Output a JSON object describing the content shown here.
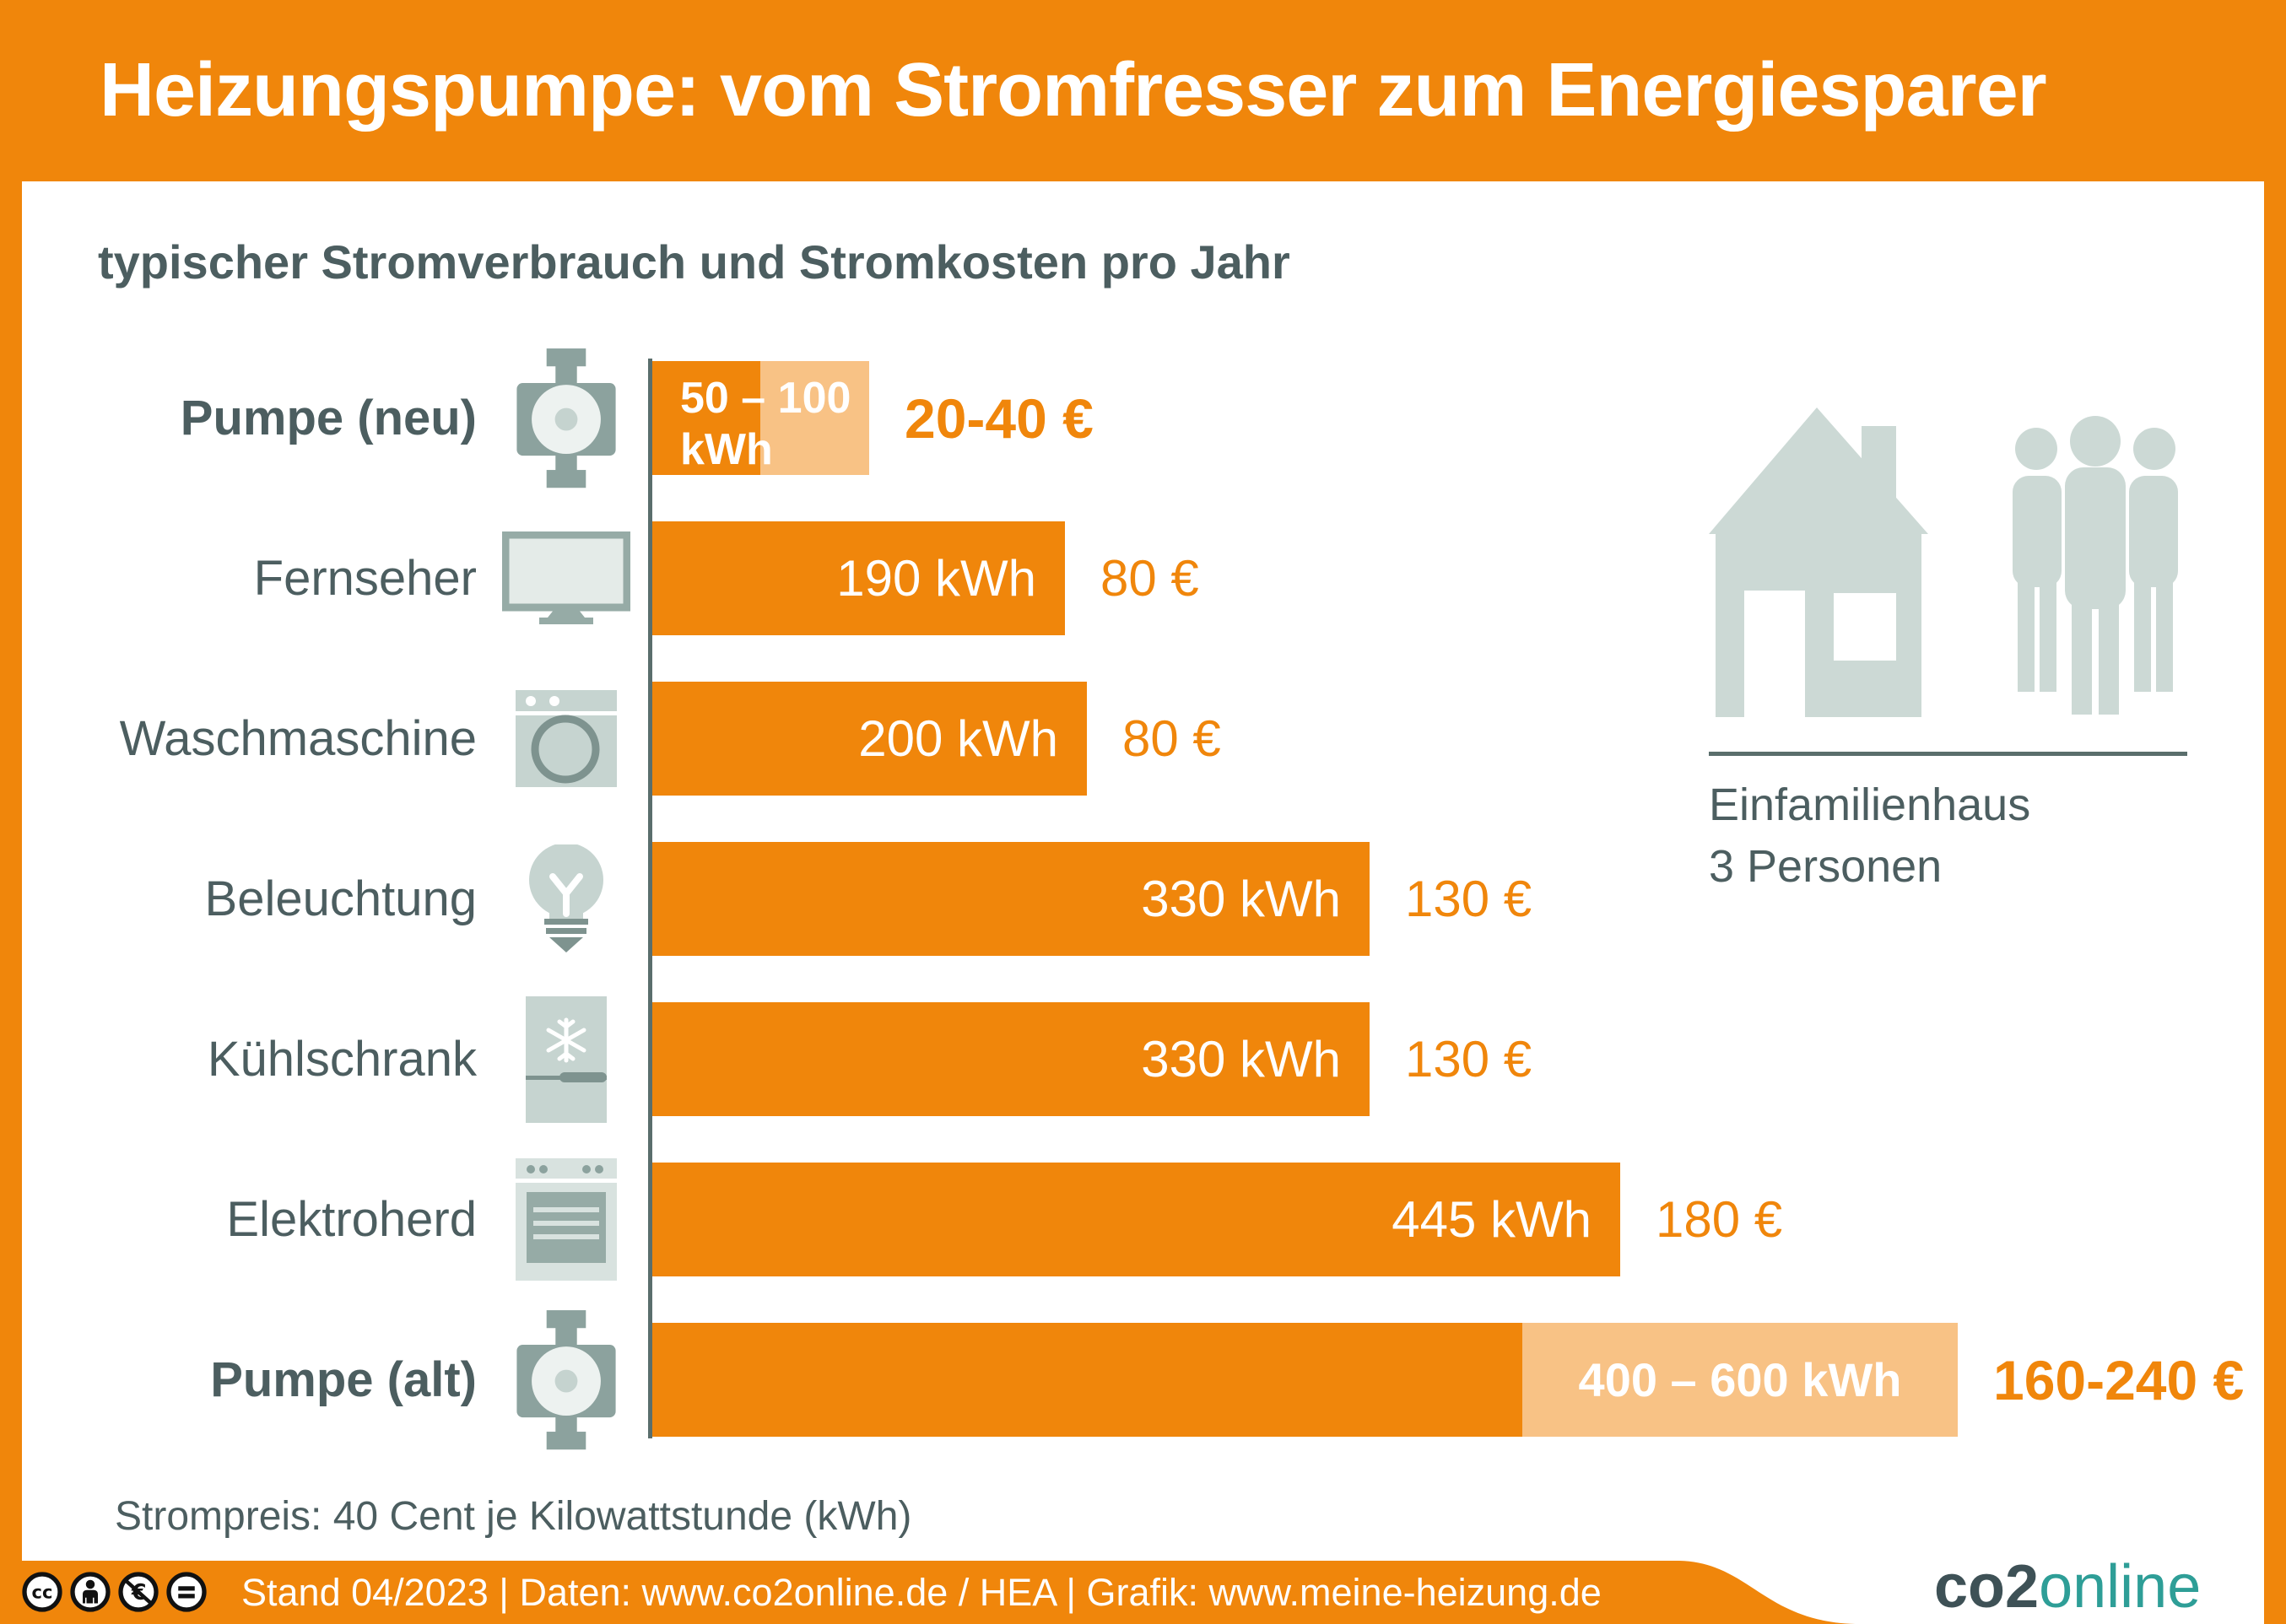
{
  "title": "Heizungspumpe: vom Stromfresser zum Energiesparer",
  "subtitle": "typischer Stromverbrauch und Stromkosten pro Jahr",
  "chart_data": {
    "type": "bar",
    "orientation": "horizontal",
    "unit": "kWh",
    "price_basis": "40 Cent je Kilowattstunde",
    "rows": [
      {
        "name": "Pumpe (neu)",
        "name_bold": true,
        "icon": "pump-icon",
        "kwh_min": 50,
        "kwh_max": 100,
        "bar_label": "50 – 100 kWh",
        "bar_label_lines": [
          "50 – 100",
          "kWh"
        ],
        "bar_label_position": "start",
        "cost_label": "20-40 €",
        "cost_bold": true
      },
      {
        "name": "Fernseher",
        "name_bold": false,
        "icon": "tv-icon",
        "kwh": 190,
        "bar_label": "190 kWh",
        "bar_label_position": "inside-right",
        "cost_label": "80 €",
        "cost_bold": false
      },
      {
        "name": "Waschmaschine",
        "name_bold": false,
        "icon": "washer-icon",
        "kwh": 200,
        "bar_label": "200 kWh",
        "bar_label_position": "inside-right",
        "cost_label": "80 €",
        "cost_bold": false
      },
      {
        "name": "Beleuchtung",
        "name_bold": false,
        "icon": "bulb-icon",
        "kwh": 330,
        "bar_label": "330 kWh",
        "bar_label_position": "inside-right",
        "cost_label": "130 €",
        "cost_bold": false
      },
      {
        "name": "Kühlschrank",
        "name_bold": false,
        "icon": "fridge-icon",
        "kwh": 330,
        "bar_label": "330 kWh",
        "bar_label_position": "inside-right",
        "cost_label": "130 €",
        "cost_bold": false
      },
      {
        "name": "Elektroherd",
        "name_bold": false,
        "icon": "stove-icon",
        "kwh": 445,
        "bar_label": "445 kWh",
        "bar_label_position": "inside-right",
        "cost_label": "180 €",
        "cost_bold": false
      },
      {
        "name": "Pumpe (alt)",
        "name_bold": true,
        "icon": "pump-icon",
        "kwh_min": 400,
        "kwh_max": 600,
        "bar_label": "400 – 600 kWh",
        "bar_label_position": "end",
        "cost_label": "160-240 €",
        "cost_bold": true
      }
    ]
  },
  "household": {
    "icons": [
      "house-icon",
      "family-icon"
    ],
    "line1": "Einfamilienhaus",
    "line2": "3 Personen"
  },
  "price_note": "Strompreis: 40 Cent je Kilowattstunde (kWh)",
  "footer": {
    "license_icons": [
      "cc-icon",
      "by-icon",
      "nc-euro-icon",
      "nd-icon"
    ],
    "text": "Stand 04/2023   |   Daten: www.co2online.de / HEA   |   Grafik: www.meine-heizung.de"
  },
  "logo": {
    "part1": "co2",
    "part2": "online"
  },
  "colors": {
    "orange": "#F0860B",
    "orange_light": "#F8C285",
    "slate_text": "#4C5E60",
    "axis_line": "#5A6E6C",
    "icon_light_gray": "#CCD9D5",
    "icon_medium_gray": "#96ABA6",
    "icon_dark_gray": "#8CA29E",
    "logo_teal": "#2E9E97",
    "logo_dark": "#3E5156",
    "bar_text": "#FFFFFF"
  }
}
